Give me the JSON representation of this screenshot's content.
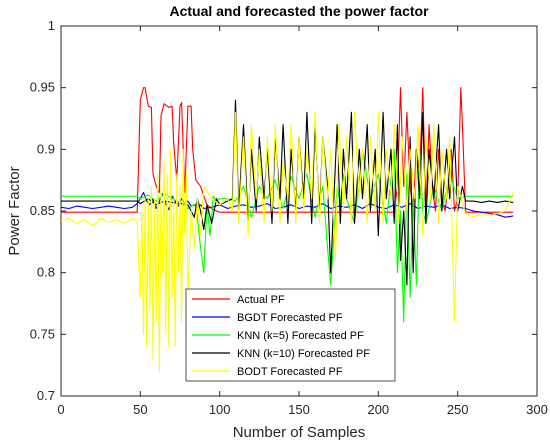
{
  "chart_data": {
    "type": "line",
    "title": "Actual and forecasted the power factor",
    "xlabel": "Number of Samples",
    "ylabel": "Power Factor",
    "xlim": [
      0,
      300
    ],
    "ylim": [
      0.7,
      1.0
    ],
    "xticks": [
      0,
      50,
      100,
      150,
      200,
      250,
      300
    ],
    "yticks": [
      0.7,
      0.75,
      0.8,
      0.85,
      0.9,
      0.95,
      1
    ],
    "ytick_labels": [
      "0.7",
      "0.75",
      "0.8",
      "0.85",
      "0.9",
      "0.95",
      "1"
    ],
    "grid": false,
    "legend_position": "bottom-center",
    "series": [
      {
        "name": "Actual PF",
        "color": "#ff0000",
        "x": [
          0,
          10,
          20,
          30,
          40,
          48,
          50,
          52,
          53,
          55,
          57,
          58,
          60,
          62,
          63,
          65,
          66,
          68,
          70,
          71,
          73,
          75,
          76,
          78,
          80,
          82,
          83,
          85,
          88,
          90,
          92,
          95,
          98,
          100,
          105,
          108,
          110,
          112,
          115,
          120,
          125,
          130,
          135,
          140,
          145,
          150,
          155,
          160,
          165,
          170,
          175,
          180,
          183,
          185,
          187,
          188,
          190,
          192,
          194,
          195,
          197,
          199,
          200,
          202,
          204,
          206,
          208,
          210,
          212,
          214,
          216,
          218,
          220,
          222,
          224,
          226,
          228,
          230,
          232,
          234,
          236,
          238,
          240,
          242,
          244,
          246,
          248,
          250,
          252,
          253,
          255,
          260,
          265,
          270,
          275,
          280,
          285
        ],
        "y": [
          0.849,
          0.849,
          0.849,
          0.849,
          0.849,
          0.849,
          0.94,
          0.95,
          0.95,
          0.935,
          0.934,
          0.88,
          0.87,
          0.865,
          0.927,
          0.937,
          0.936,
          0.934,
          0.935,
          0.905,
          0.875,
          0.935,
          0.938,
          0.865,
          0.935,
          0.935,
          0.9,
          0.875,
          0.87,
          0.862,
          0.855,
          0.852,
          0.85,
          0.849,
          0.849,
          0.849,
          0.849,
          0.849,
          0.849,
          0.849,
          0.849,
          0.849,
          0.849,
          0.849,
          0.849,
          0.849,
          0.849,
          0.849,
          0.849,
          0.849,
          0.849,
          0.849,
          0.849,
          0.849,
          0.849,
          0.849,
          0.849,
          0.849,
          0.849,
          0.849,
          0.849,
          0.849,
          0.849,
          0.849,
          0.849,
          0.849,
          0.849,
          0.849,
          0.87,
          0.95,
          0.87,
          0.93,
          0.87,
          0.85,
          0.9,
          0.88,
          0.95,
          0.85,
          0.92,
          0.87,
          0.85,
          0.9,
          0.86,
          0.85,
          0.87,
          0.9,
          0.85,
          0.86,
          0.95,
          0.92,
          0.849,
          0.849,
          0.849,
          0.849,
          0.849,
          0.849,
          0.849
        ]
      },
      {
        "name": "BGDT Forecasted PF",
        "color": "#0000ff",
        "x": [
          0,
          5,
          10,
          15,
          20,
          25,
          30,
          35,
          40,
          45,
          48,
          50,
          52,
          54,
          56,
          58,
          60,
          62,
          64,
          66,
          68,
          70,
          72,
          74,
          76,
          78,
          80,
          82,
          84,
          86,
          88,
          90,
          95,
          100,
          105,
          110,
          115,
          120,
          125,
          130,
          135,
          140,
          145,
          150,
          155,
          160,
          165,
          170,
          175,
          180,
          185,
          190,
          195,
          200,
          205,
          210,
          215,
          220,
          225,
          230,
          235,
          240,
          245,
          250,
          255,
          260,
          265,
          270,
          275,
          280,
          285
        ],
        "y": [
          0.853,
          0.852,
          0.854,
          0.853,
          0.852,
          0.853,
          0.854,
          0.853,
          0.852,
          0.853,
          0.856,
          0.86,
          0.865,
          0.858,
          0.855,
          0.86,
          0.852,
          0.858,
          0.864,
          0.856,
          0.851,
          0.862,
          0.858,
          0.854,
          0.86,
          0.856,
          0.858,
          0.854,
          0.855,
          0.853,
          0.855,
          0.852,
          0.853,
          0.855,
          0.852,
          0.854,
          0.855,
          0.853,
          0.854,
          0.856,
          0.852,
          0.853,
          0.855,
          0.852,
          0.854,
          0.853,
          0.856,
          0.852,
          0.854,
          0.853,
          0.855,
          0.852,
          0.856,
          0.853,
          0.852,
          0.855,
          0.853,
          0.856,
          0.852,
          0.854,
          0.853,
          0.855,
          0.852,
          0.853,
          0.852,
          0.85,
          0.849,
          0.848,
          0.847,
          0.845,
          0.846
        ]
      },
      {
        "name": "KNN (k=5) Forecasted PF",
        "color": "#00ff00",
        "x": [
          0,
          10,
          20,
          30,
          40,
          48,
          50,
          55,
          60,
          65,
          70,
          75,
          80,
          85,
          88,
          90,
          92,
          94,
          96,
          98,
          100,
          105,
          110,
          115,
          120,
          125,
          130,
          135,
          140,
          145,
          150,
          155,
          160,
          165,
          168,
          170,
          172,
          174,
          176,
          178,
          180,
          185,
          190,
          195,
          200,
          205,
          210,
          212,
          214,
          216,
          218,
          220,
          222,
          224,
          226,
          228,
          230,
          235,
          240,
          245,
          250,
          255,
          260,
          265,
          270,
          275,
          280,
          285
        ],
        "y": [
          0.862,
          0.862,
          0.862,
          0.862,
          0.862,
          0.862,
          0.86,
          0.863,
          0.858,
          0.864,
          0.86,
          0.857,
          0.852,
          0.856,
          0.82,
          0.8,
          0.855,
          0.83,
          0.862,
          0.858,
          0.86,
          0.86,
          0.858,
          0.87,
          0.845,
          0.87,
          0.86,
          0.875,
          0.852,
          0.878,
          0.86,
          0.88,
          0.845,
          0.87,
          0.82,
          0.79,
          0.83,
          0.87,
          0.855,
          0.88,
          0.86,
          0.84,
          0.9,
          0.86,
          0.88,
          0.84,
          0.9,
          0.8,
          0.85,
          0.76,
          0.88,
          0.78,
          0.86,
          0.79,
          0.9,
          0.85,
          0.84,
          0.87,
          0.85,
          0.88,
          0.86,
          0.862,
          0.862,
          0.862,
          0.862,
          0.862,
          0.862,
          0.862
        ]
      },
      {
        "name": "KNN (k=10) Forecasted PF",
        "color": "#000000",
        "x": [
          0,
          10,
          20,
          30,
          40,
          48,
          50,
          55,
          60,
          65,
          70,
          75,
          80,
          82,
          84,
          86,
          88,
          90,
          92,
          95,
          98,
          100,
          105,
          108,
          110,
          112,
          115,
          118,
          120,
          123,
          125,
          128,
          130,
          133,
          135,
          138,
          140,
          143,
          145,
          148,
          150,
          153,
          155,
          158,
          160,
          163,
          165,
          168,
          170,
          172,
          174,
          176,
          178,
          180,
          183,
          185,
          188,
          190,
          193,
          195,
          198,
          200,
          203,
          205,
          208,
          210,
          212,
          214,
          216,
          218,
          220,
          222,
          224,
          226,
          228,
          230,
          232,
          235,
          238,
          240,
          243,
          245,
          248,
          250,
          253,
          255,
          260,
          265,
          270,
          275,
          280,
          285
        ],
        "y": [
          0.858,
          0.858,
          0.858,
          0.858,
          0.858,
          0.858,
          0.856,
          0.86,
          0.855,
          0.858,
          0.857,
          0.856,
          0.855,
          0.85,
          0.845,
          0.86,
          0.85,
          0.835,
          0.855,
          0.84,
          0.86,
          0.855,
          0.858,
          0.86,
          0.94,
          0.85,
          0.92,
          0.84,
          0.9,
          0.85,
          0.91,
          0.86,
          0.9,
          0.84,
          0.91,
          0.86,
          0.92,
          0.84,
          0.9,
          0.85,
          0.91,
          0.86,
          0.93,
          0.84,
          0.92,
          0.85,
          0.91,
          0.87,
          0.8,
          0.86,
          0.92,
          0.84,
          0.9,
          0.86,
          0.93,
          0.84,
          0.9,
          0.86,
          0.92,
          0.85,
          0.9,
          0.83,
          0.93,
          0.86,
          0.9,
          0.84,
          0.92,
          0.81,
          0.85,
          0.79,
          0.91,
          0.8,
          0.9,
          0.86,
          0.93,
          0.84,
          0.9,
          0.86,
          0.92,
          0.85,
          0.9,
          0.86,
          0.91,
          0.85,
          0.87,
          0.858,
          0.858,
          0.857,
          0.858,
          0.857,
          0.858,
          0.857
        ]
      },
      {
        "name": "BODT Forecasted PF",
        "color": "#ffff00",
        "x": [
          0,
          5,
          10,
          15,
          20,
          25,
          30,
          35,
          40,
          45,
          48,
          50,
          51,
          52,
          53,
          54,
          55,
          56,
          57,
          58,
          59,
          60,
          61,
          62,
          63,
          64,
          65,
          66,
          67,
          68,
          69,
          70,
          71,
          72,
          73,
          74,
          75,
          76,
          77,
          78,
          79,
          80,
          82,
          84,
          86,
          88,
          90,
          95,
          100,
          105,
          108,
          110,
          112,
          115,
          118,
          120,
          123,
          125,
          128,
          130,
          133,
          135,
          138,
          140,
          143,
          145,
          148,
          150,
          153,
          155,
          158,
          160,
          163,
          165,
          168,
          170,
          173,
          175,
          178,
          180,
          183,
          185,
          188,
          190,
          193,
          195,
          198,
          200,
          203,
          205,
          208,
          210,
          213,
          215,
          218,
          220,
          223,
          225,
          228,
          230,
          233,
          235,
          238,
          240,
          243,
          245,
          248,
          250,
          255,
          260,
          265,
          270,
          275,
          280,
          285
        ],
        "y": [
          0.842,
          0.844,
          0.84,
          0.843,
          0.838,
          0.844,
          0.841,
          0.843,
          0.84,
          0.844,
          0.842,
          0.78,
          0.85,
          0.75,
          0.86,
          0.74,
          0.86,
          0.77,
          0.87,
          0.73,
          0.86,
          0.76,
          0.88,
          0.72,
          0.87,
          0.8,
          0.89,
          0.75,
          0.88,
          0.74,
          0.9,
          0.78,
          0.86,
          0.74,
          0.88,
          0.8,
          0.87,
          0.76,
          0.9,
          0.83,
          0.88,
          0.78,
          0.85,
          0.82,
          0.86,
          0.83,
          0.87,
          0.86,
          0.855,
          0.86,
          0.85,
          0.93,
          0.84,
          0.91,
          0.83,
          0.92,
          0.86,
          0.9,
          0.84,
          0.91,
          0.85,
          0.92,
          0.84,
          0.89,
          0.86,
          0.92,
          0.84,
          0.91,
          0.85,
          0.9,
          0.86,
          0.93,
          0.84,
          0.91,
          0.86,
          0.9,
          0.81,
          0.92,
          0.85,
          0.91,
          0.84,
          0.93,
          0.86,
          0.9,
          0.84,
          0.91,
          0.85,
          0.93,
          0.84,
          0.9,
          0.86,
          0.92,
          0.84,
          0.91,
          0.85,
          0.9,
          0.86,
          0.92,
          0.83,
          0.91,
          0.86,
          0.92,
          0.84,
          0.9,
          0.86,
          0.91,
          0.76,
          0.87,
          0.848,
          0.845,
          0.848,
          0.846,
          0.848,
          0.85,
          0.865
        ]
      }
    ]
  }
}
